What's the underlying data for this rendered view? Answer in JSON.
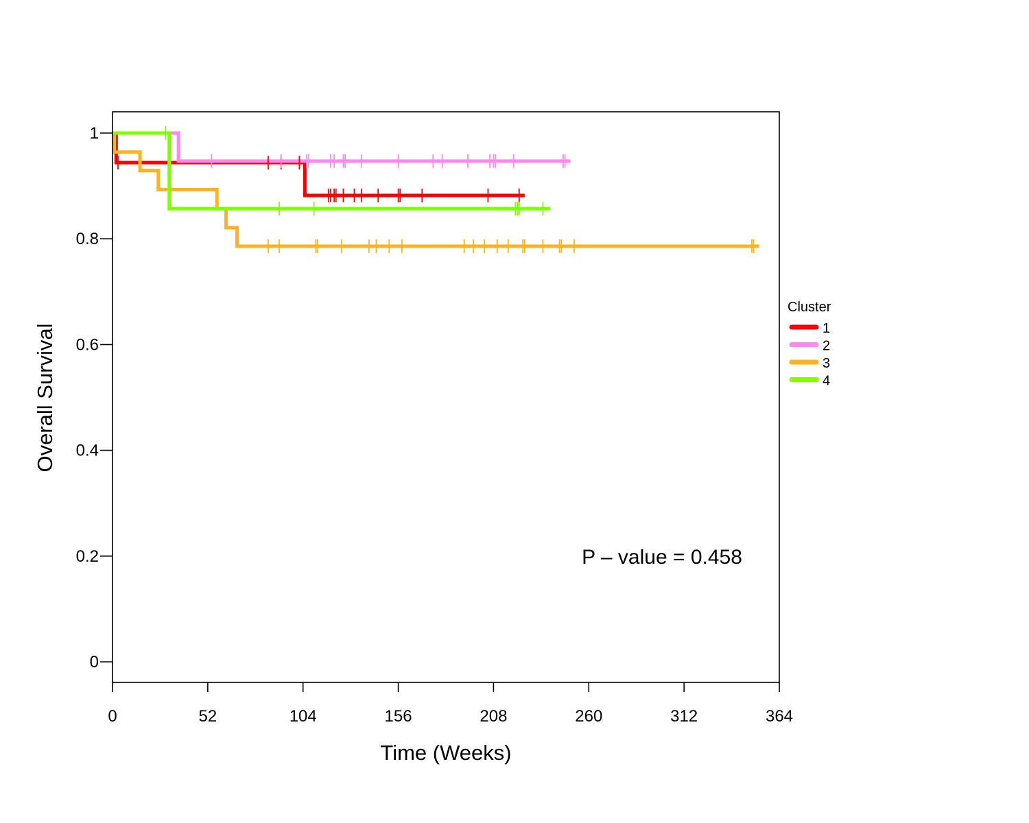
{
  "chart_data": {
    "type": "line",
    "xlabel": "Time (Weeks)",
    "ylabel": "Overall Survival",
    "xlim": [
      0,
      364
    ],
    "ylim": [
      -0.04,
      1.04
    ],
    "x_ticks": [
      0,
      52,
      104,
      156,
      208,
      260,
      312,
      364
    ],
    "x_tick_labels": [
      "0",
      "52",
      "104",
      "156",
      "208",
      "260",
      "312",
      "364"
    ],
    "y_ticks": [
      0,
      0.2,
      0.4,
      0.6,
      0.8,
      1
    ],
    "y_tick_labels": [
      "0",
      "0.2",
      "0.4",
      "0.6",
      "0.8",
      "1"
    ],
    "grid": false,
    "annotation": "P – value = 0.458",
    "legend": {
      "title": "Cluster",
      "placement": "right"
    },
    "series": [
      {
        "name": "1",
        "color": "#ff0000",
        "steps": [
          [
            0,
            1.0
          ],
          [
            2,
            0.944
          ],
          [
            105,
            0.882
          ],
          [
            225,
            0.882
          ]
        ],
        "censors": [
          3,
          85,
          92,
          102,
          118,
          119,
          121,
          122,
          126,
          132,
          136,
          145,
          156,
          157,
          169,
          205,
          222
        ]
      },
      {
        "name": "2",
        "color": "#ff88ee",
        "steps": [
          [
            0,
            1.0
          ],
          [
            36,
            0.947
          ],
          [
            250,
            0.947
          ]
        ],
        "censors": [
          54,
          92,
          106,
          107,
          119,
          121,
          126,
          127,
          136,
          156,
          175,
          180,
          194,
          206,
          208,
          209,
          219,
          246,
          247
        ]
      },
      {
        "name": "3",
        "color": "#ffb21f",
        "steps": [
          [
            0,
            1.0
          ],
          [
            1,
            0.964
          ],
          [
            15,
            0.929
          ],
          [
            25,
            0.893
          ],
          [
            57,
            0.857
          ],
          [
            62,
            0.821
          ],
          [
            68,
            0.786
          ],
          [
            353,
            0.786
          ]
        ],
        "censors": [
          85,
          91,
          111,
          112,
          125,
          140,
          144,
          151,
          158,
          192,
          197,
          203,
          210,
          216,
          224,
          225,
          235,
          244,
          245,
          252,
          349,
          350
        ]
      },
      {
        "name": "4",
        "color": "#7fff00",
        "steps": [
          [
            0,
            1.0
          ],
          [
            31,
            0.857
          ],
          [
            239,
            0.857
          ]
        ],
        "censors": [
          29,
          91,
          110,
          220,
          221,
          222,
          235
        ]
      }
    ]
  }
}
